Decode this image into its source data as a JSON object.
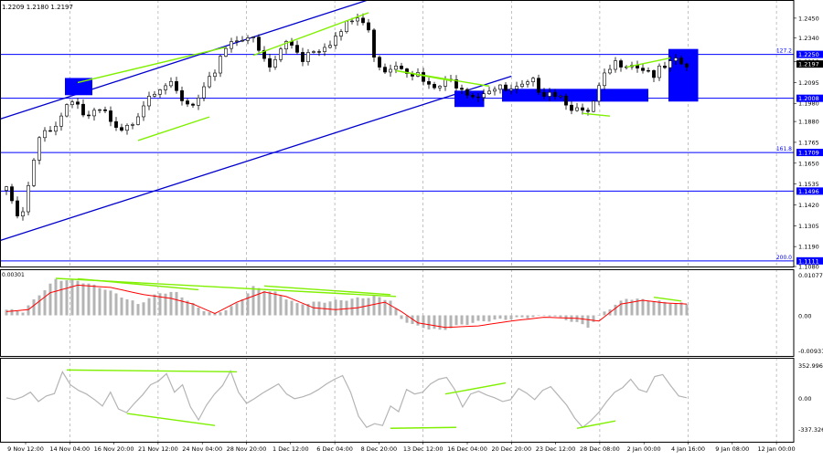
{
  "header": {
    "ohlc_text": "1.2209 1.2180 1.2197"
  },
  "colors": {
    "background": "#ffffff",
    "candle": "#000000",
    "level_line": "#0000ff",
    "channel_line": "#0000cd",
    "divergence_line": "#7ff000",
    "macd_hist": "#b4b4b4",
    "macd_signal": "#ff0000",
    "cci_line": "#b4b4b4",
    "current_price_label_bg": "#000000",
    "level_label_bg": "#0000ff"
  },
  "chart_data": [
    {
      "type": "candlestick",
      "name": "price",
      "time_labels": [
        "9 Nov 12:00",
        "14 Nov 04:00",
        "16 Nov 20:00",
        "21 Nov 12:00",
        "24 Nov 04:00",
        "28 Nov 20:00",
        "1 Dec 12:00",
        "6 Dec 04:00",
        "8 Dec 20:00",
        "13 Dec 12:00",
        "16 Dec 04:00",
        "20 Dec 20:00",
        "23 Dec 12:00",
        "28 Dec 08:00",
        "2 Jan 00:00",
        "4 Jan 16:00",
        "9 Jan 08:00",
        "12 Jan 00:00"
      ],
      "y_ticks": [
        1.245,
        1.234,
        1.221,
        1.2095,
        1.198,
        1.188,
        1.1765,
        1.165,
        1.1535,
        1.142,
        1.1305,
        1.119,
        1.108
      ],
      "ylim": [
        1.108,
        1.253
      ],
      "current_price": 1.2197,
      "path": [
        1.152,
        1.136,
        1.135,
        1.157,
        1.176,
        1.184,
        1.186,
        1.192,
        1.203,
        1.197,
        1.189,
        1.191,
        1.194,
        1.187,
        1.18,
        1.183,
        1.19,
        1.198,
        1.205,
        1.208,
        1.21,
        1.204,
        1.198,
        1.195,
        1.199,
        1.206,
        1.216,
        1.228,
        1.232,
        1.235,
        1.236,
        1.231,
        1.222,
        1.217,
        1.225,
        1.232,
        1.23,
        1.223,
        1.228,
        1.229,
        1.232,
        1.234,
        1.238,
        1.243,
        1.245,
        1.24,
        1.225,
        1.217,
        1.219,
        1.221,
        1.218,
        1.215,
        1.21,
        1.205,
        1.207,
        1.209,
        1.21,
        1.208,
        1.204,
        1.203,
        1.207,
        1.206,
        1.205,
        1.204,
        1.205,
        1.207,
        1.209,
        1.205,
        1.206,
        1.203,
        1.2,
        1.195,
        1.191,
        1.193,
        1.205,
        1.214,
        1.219,
        1.222,
        1.221,
        1.219,
        1.217,
        1.214,
        1.216,
        1.219,
        1.22,
        1.218
      ],
      "price_levels": [
        {
          "value": 1.225,
          "label": "1.2250",
          "fib": "127.2"
        },
        {
          "value": 1.2008,
          "label": "1.2008",
          "fib": ""
        },
        {
          "value": 1.1709,
          "label": "1.1709",
          "fib": "161.8"
        },
        {
          "value": 1.1496,
          "label": "1.1496",
          "fib": ""
        },
        {
          "value": 1.1111,
          "label": "1.1111",
          "fib": "200.0"
        }
      ],
      "channel": {
        "upper": [
          [
            "9 Nov 12:00",
            1.189
          ],
          [
            "8 Dec 20:00",
            1.257
          ]
        ],
        "lower": [
          [
            "9 Nov 12:00",
            1.122
          ],
          [
            "20 Dec 20:00",
            1.213
          ]
        ]
      }
    },
    {
      "type": "bar",
      "name": "macd",
      "ylim": [
        -0.00931,
        0.01077
      ],
      "y_ticks": [
        0.01077,
        0.0,
        -0.00931
      ],
      "y_tick_labels": [
        "0.01077",
        "0.00",
        "-0.00931"
      ],
      "top_left_label": "0.00301",
      "histogram_keys": [
        [
          0,
          0.0015
        ],
        [
          3,
          0.001
        ],
        [
          6,
          0.0055
        ],
        [
          9,
          0.0095
        ],
        [
          13,
          0.0092
        ],
        [
          18,
          0.007
        ],
        [
          24,
          0.003
        ],
        [
          28,
          0.006
        ],
        [
          31,
          0.006
        ],
        [
          35,
          0.002
        ],
        [
          38,
          0.0002
        ],
        [
          42,
          0.003
        ],
        [
          45,
          0.0075
        ],
        [
          49,
          0.006
        ],
        [
          53,
          0.003
        ],
        [
          57,
          0.0035
        ],
        [
          61,
          0.004
        ],
        [
          64,
          0.0045
        ],
        [
          67,
          0.005
        ],
        [
          70,
          0.004
        ],
        [
          72,
          -0.001
        ],
        [
          75,
          -0.003
        ],
        [
          79,
          -0.004
        ],
        [
          83,
          -0.0025
        ],
        [
          87,
          -0.0015
        ],
        [
          91,
          -0.001
        ],
        [
          95,
          -0.0005
        ],
        [
          99,
          0.0
        ],
        [
          103,
          -0.0015
        ],
        [
          106,
          -0.003
        ],
        [
          109,
          0.001
        ],
        [
          113,
          0.0045
        ],
        [
          117,
          0.004
        ],
        [
          120,
          0.0035
        ],
        [
          124,
          0.003
        ]
      ],
      "signal_keys": [
        [
          0,
          0.001
        ],
        [
          4,
          0.0015
        ],
        [
          8,
          0.006
        ],
        [
          13,
          0.008
        ],
        [
          19,
          0.0074
        ],
        [
          25,
          0.0055
        ],
        [
          30,
          0.0045
        ],
        [
          34,
          0.003
        ],
        [
          38,
          0.0005
        ],
        [
          42,
          0.0035
        ],
        [
          47,
          0.0062
        ],
        [
          51,
          0.005
        ],
        [
          56,
          0.002
        ],
        [
          60,
          0.0015
        ],
        [
          64,
          0.002
        ],
        [
          69,
          0.0035
        ],
        [
          72,
          0.001
        ],
        [
          75,
          -0.002
        ],
        [
          80,
          -0.0032
        ],
        [
          86,
          -0.0028
        ],
        [
          92,
          -0.0015
        ],
        [
          98,
          -0.0005
        ],
        [
          104,
          -0.0008
        ],
        [
          108,
          -0.0015
        ],
        [
          112,
          0.003
        ],
        [
          116,
          0.004
        ],
        [
          120,
          0.0033
        ],
        [
          124,
          0.003
        ]
      ]
    },
    {
      "type": "line",
      "name": "cci",
      "ylim": [
        -337.3265,
        352.9968
      ],
      "y_ticks": [
        352.9968,
        0.0,
        -337.3265
      ],
      "y_tick_labels": [
        "352.9968",
        "0.00",
        "-337.3265"
      ],
      "series": [
        {
          "values": [
            0,
            -20,
            10,
            60,
            -40,
            20,
            45,
            280,
            140,
            80,
            40,
            -20,
            -90,
            60,
            -120,
            -160,
            -60,
            30,
            140,
            180,
            260,
            60,
            140,
            -100,
            -240,
            -80,
            40,
            130,
            290,
            60,
            -60,
            -10,
            50,
            100,
            150,
            40,
            -10,
            10,
            40,
            90,
            150,
            200,
            240,
            60,
            -200,
            -320,
            -280,
            -300,
            -90,
            -150,
            90,
            40,
            60,
            150,
            200,
            220,
            90,
            -100,
            40,
            70,
            30,
            0,
            -40,
            -20,
            100,
            50,
            -20,
            80,
            120,
            20,
            -80,
            -220,
            -320,
            -250,
            -160,
            -40,
            60,
            110,
            200,
            90,
            60,
            230,
            250,
            130,
            20,
            0
          ]
        }
      ]
    }
  ]
}
